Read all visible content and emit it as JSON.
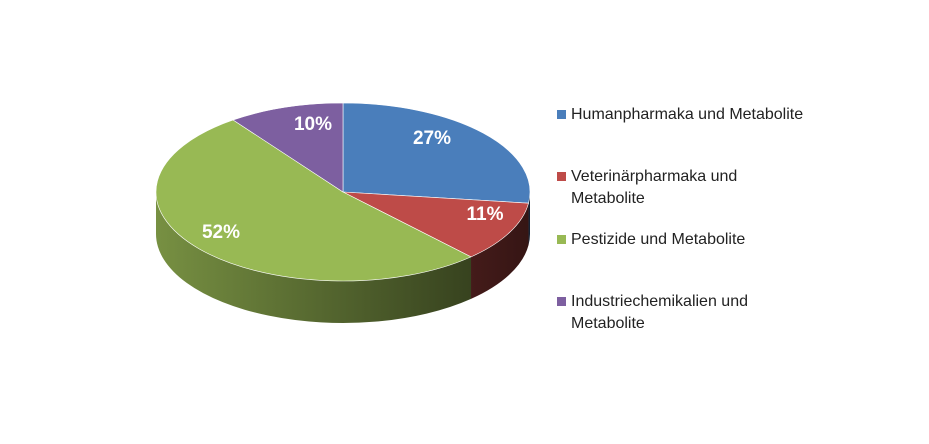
{
  "chart_data": {
    "type": "pie",
    "title": "",
    "unit": "%",
    "slices": [
      {
        "name": "Humanpharmaka und Metabolite",
        "value": 27,
        "label": "27%",
        "color": "#4a7ebb"
      },
      {
        "name": "Veterinärpharmaka und Metabolite",
        "value": 11,
        "label": "11%",
        "color": "#be4b48"
      },
      {
        "name": "Pestizide und Metabolite",
        "value": 52,
        "label": "52%",
        "color": "#98b954"
      },
      {
        "name": "Industriechemikalien und Metabolite",
        "value": 10,
        "label": "10%",
        "color": "#7d5fa0"
      }
    ],
    "legend_position": "right",
    "style": "3d"
  }
}
